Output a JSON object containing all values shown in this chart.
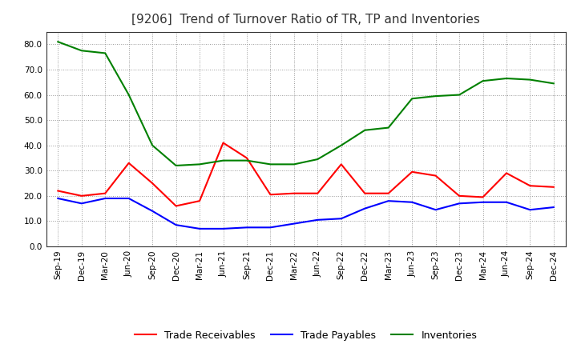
{
  "title": "[9206]  Trend of Turnover Ratio of TR, TP and Inventories",
  "x_labels": [
    "Sep-19",
    "Dec-19",
    "Mar-20",
    "Jun-20",
    "Sep-20",
    "Dec-20",
    "Mar-21",
    "Jun-21",
    "Sep-21",
    "Dec-21",
    "Mar-22",
    "Jun-22",
    "Sep-22",
    "Dec-22",
    "Mar-23",
    "Jun-23",
    "Sep-23",
    "Dec-23",
    "Mar-24",
    "Jun-24",
    "Sep-24",
    "Dec-24"
  ],
  "trade_receivables": [
    22.0,
    20.0,
    21.0,
    33.0,
    25.0,
    16.0,
    18.0,
    41.0,
    35.0,
    20.5,
    21.0,
    21.0,
    32.5,
    21.0,
    21.0,
    29.5,
    28.0,
    20.0,
    19.5,
    29.0,
    24.0,
    23.5
  ],
  "trade_payables": [
    19.0,
    17.0,
    19.0,
    19.0,
    14.0,
    8.5,
    7.0,
    7.0,
    7.5,
    7.5,
    9.0,
    10.5,
    11.0,
    15.0,
    18.0,
    17.5,
    14.5,
    17.0,
    17.5,
    17.5,
    14.5,
    15.5
  ],
  "inventories": [
    81.0,
    77.5,
    76.5,
    60.0,
    40.0,
    32.0,
    32.5,
    34.0,
    34.0,
    32.5,
    32.5,
    34.5,
    40.0,
    46.0,
    47.0,
    58.5,
    59.5,
    60.0,
    65.5,
    66.5,
    66.0,
    64.5
  ],
  "ylim": [
    0.0,
    85.0
  ],
  "yticks": [
    0.0,
    10.0,
    20.0,
    30.0,
    40.0,
    50.0,
    60.0,
    70.0,
    80.0
  ],
  "color_tr": "#ff0000",
  "color_tp": "#0000ff",
  "color_inv": "#008000",
  "legend_labels": [
    "Trade Receivables",
    "Trade Payables",
    "Inventories"
  ],
  "line_width": 1.5,
  "background_color": "#ffffff",
  "grid_color": "#999999",
  "title_fontsize": 11,
  "tick_fontsize": 7.5,
  "legend_fontsize": 9
}
